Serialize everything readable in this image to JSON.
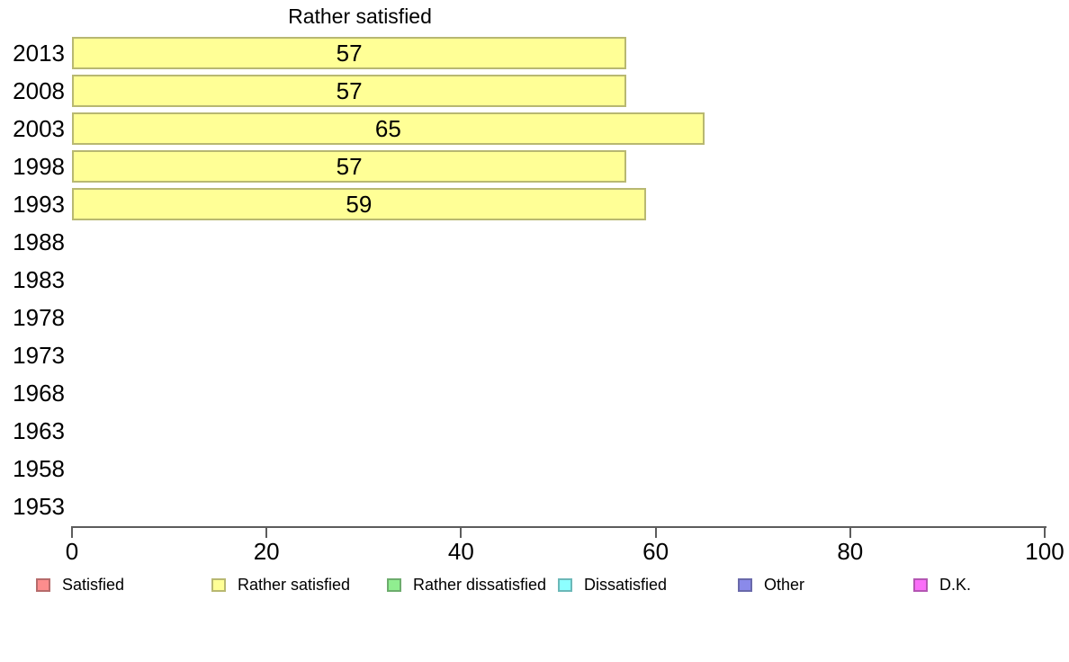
{
  "chart_data": {
    "type": "bar",
    "orientation": "horizontal",
    "title": "Rather satisfied",
    "categories": [
      "2013",
      "2008",
      "2003",
      "1998",
      "1993",
      "1988",
      "1983",
      "1978",
      "1973",
      "1968",
      "1963",
      "1958",
      "1953"
    ],
    "values": [
      57,
      57,
      65,
      57,
      59,
      null,
      null,
      null,
      null,
      null,
      null,
      null,
      null
    ],
    "bar_labels": [
      "57",
      "57",
      "65",
      "57",
      "59",
      "",
      "",
      "",
      "",
      "",
      "",
      "",
      ""
    ],
    "xlabel": "",
    "ylabel": "",
    "xlim": [
      0,
      100
    ],
    "x_ticks": [
      0,
      20,
      40,
      60,
      80,
      100
    ],
    "grid": "off",
    "bar_color": "#FFFF96",
    "legend_position": "bottom",
    "legend": [
      {
        "label": "Satisfied",
        "color": "#FC8D8D"
      },
      {
        "label": "Rather satisfied",
        "color": "#FFFF96"
      },
      {
        "label": "Rather dissatisfied",
        "color": "#90EE90"
      },
      {
        "label": "Dissatisfied",
        "color": "#8DFFFF"
      },
      {
        "label": "Other",
        "color": "#8A8AEA"
      },
      {
        "label": "D.K.",
        "color": "#FA6EF8"
      }
    ]
  }
}
